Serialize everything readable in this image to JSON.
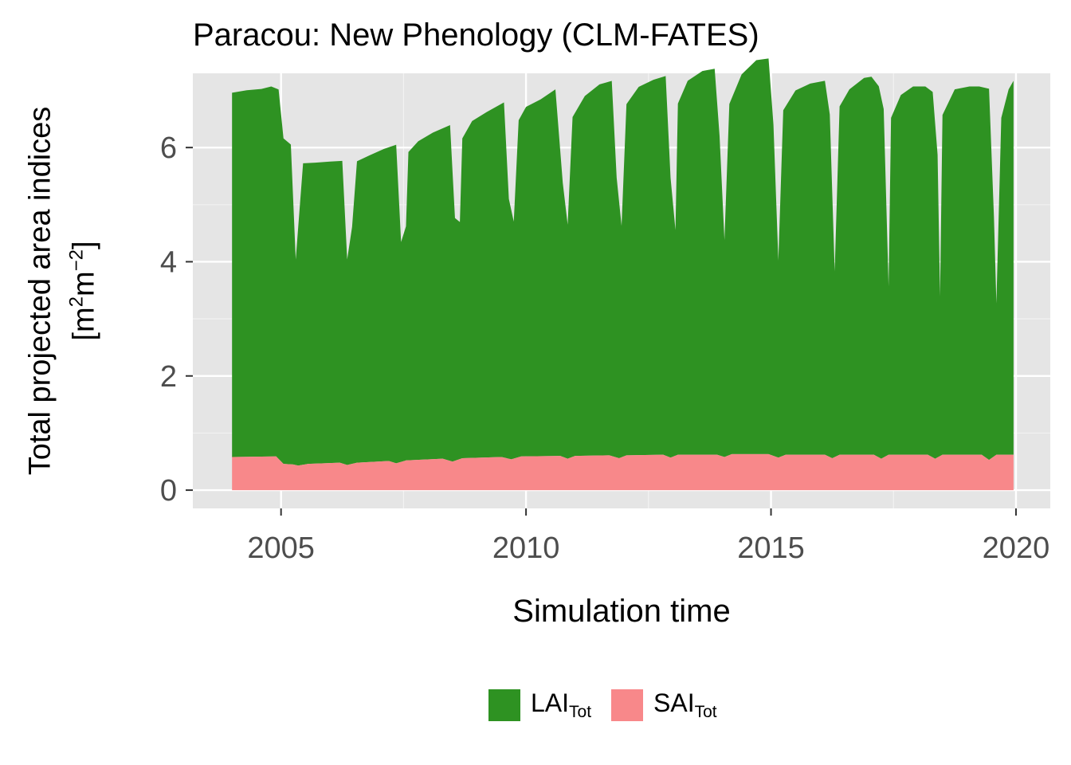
{
  "chart_data": {
    "type": "area",
    "title": "Paracou: New Phenology (CLM-FATES)",
    "xlabel": "Simulation time",
    "ylabel_line1": "Total projected area indices",
    "ylabel_unit_open": "[m",
    "ylabel_unit_sup1": "2",
    "ylabel_unit_mid": "m",
    "ylabel_unit_sup2": "−2",
    "ylabel_unit_close": "]",
    "xlim": [
      2003.2,
      2020.7
    ],
    "ylim": [
      -0.32,
      7.3
    ],
    "xticks": [
      2005,
      2010,
      2015,
      2020
    ],
    "xtick_labels": [
      "2005",
      "2010",
      "2015",
      "2020"
    ],
    "yticks": [
      0,
      2,
      4,
      6
    ],
    "ytick_labels": [
      "0",
      "2",
      "4",
      "6"
    ],
    "grid": true,
    "legend_position": "bottom",
    "stacked": true,
    "series": [
      {
        "name": "SAI",
        "name_sub": "Tot",
        "color": "#F8888A",
        "points": [
          [
            2004.0,
            0.58
          ],
          [
            2004.9,
            0.59
          ],
          [
            2005.05,
            0.46
          ],
          [
            2005.25,
            0.45
          ],
          [
            2005.35,
            0.43
          ],
          [
            2005.55,
            0.46
          ],
          [
            2006.2,
            0.48
          ],
          [
            2006.35,
            0.44
          ],
          [
            2006.55,
            0.48
          ],
          [
            2007.2,
            0.51
          ],
          [
            2007.35,
            0.47
          ],
          [
            2007.55,
            0.52
          ],
          [
            2008.3,
            0.55
          ],
          [
            2008.5,
            0.5
          ],
          [
            2008.7,
            0.56
          ],
          [
            2009.5,
            0.58
          ],
          [
            2009.7,
            0.54
          ],
          [
            2009.9,
            0.59
          ],
          [
            2010.7,
            0.6
          ],
          [
            2010.85,
            0.55
          ],
          [
            2011.0,
            0.6
          ],
          [
            2011.7,
            0.61
          ],
          [
            2011.9,
            0.56
          ],
          [
            2012.05,
            0.61
          ],
          [
            2012.8,
            0.62
          ],
          [
            2012.95,
            0.57
          ],
          [
            2013.1,
            0.62
          ],
          [
            2013.9,
            0.62
          ],
          [
            2014.05,
            0.58
          ],
          [
            2014.2,
            0.63
          ],
          [
            2014.95,
            0.63
          ],
          [
            2015.15,
            0.57
          ],
          [
            2015.3,
            0.62
          ],
          [
            2016.1,
            0.62
          ],
          [
            2016.25,
            0.56
          ],
          [
            2016.4,
            0.62
          ],
          [
            2017.1,
            0.62
          ],
          [
            2017.25,
            0.55
          ],
          [
            2017.4,
            0.62
          ],
          [
            2018.2,
            0.62
          ],
          [
            2018.35,
            0.55
          ],
          [
            2018.5,
            0.62
          ],
          [
            2019.3,
            0.62
          ],
          [
            2019.45,
            0.53
          ],
          [
            2019.6,
            0.62
          ],
          [
            2019.95,
            0.62
          ]
        ]
      },
      {
        "name": "LAI",
        "name_sub": "Tot",
        "color": "#2E9222",
        "points": [
          [
            2004.0,
            6.38
          ],
          [
            2004.3,
            6.42
          ],
          [
            2004.6,
            6.44
          ],
          [
            2004.8,
            6.48
          ],
          [
            2004.95,
            6.47
          ],
          [
            2005.05,
            5.7
          ],
          [
            2005.2,
            5.6
          ],
          [
            2005.3,
            3.6
          ],
          [
            2005.45,
            5.28
          ],
          [
            2005.7,
            5.27
          ],
          [
            2006.0,
            5.28
          ],
          [
            2006.25,
            5.3
          ],
          [
            2006.35,
            3.6
          ],
          [
            2006.45,
            4.15
          ],
          [
            2006.55,
            5.28
          ],
          [
            2006.8,
            5.37
          ],
          [
            2007.1,
            5.47
          ],
          [
            2007.35,
            5.58
          ],
          [
            2007.45,
            3.85
          ],
          [
            2007.55,
            4.1
          ],
          [
            2007.6,
            5.4
          ],
          [
            2007.8,
            5.58
          ],
          [
            2008.1,
            5.72
          ],
          [
            2008.45,
            5.88
          ],
          [
            2008.55,
            4.25
          ],
          [
            2008.65,
            4.15
          ],
          [
            2008.7,
            5.6
          ],
          [
            2008.9,
            5.9
          ],
          [
            2009.2,
            6.05
          ],
          [
            2009.55,
            6.22
          ],
          [
            2009.65,
            4.55
          ],
          [
            2009.75,
            4.15
          ],
          [
            2009.85,
            5.9
          ],
          [
            2010.0,
            6.12
          ],
          [
            2010.3,
            6.25
          ],
          [
            2010.6,
            6.42
          ],
          [
            2010.75,
            4.8
          ],
          [
            2010.85,
            4.1
          ],
          [
            2010.95,
            5.95
          ],
          [
            2011.2,
            6.3
          ],
          [
            2011.5,
            6.5
          ],
          [
            2011.75,
            6.57
          ],
          [
            2011.85,
            4.9
          ],
          [
            2011.95,
            4.05
          ],
          [
            2012.05,
            6.15
          ],
          [
            2012.3,
            6.45
          ],
          [
            2012.6,
            6.57
          ],
          [
            2012.85,
            6.65
          ],
          [
            2012.95,
            4.9
          ],
          [
            2013.05,
            3.95
          ],
          [
            2013.1,
            6.15
          ],
          [
            2013.3,
            6.55
          ],
          [
            2013.6,
            6.72
          ],
          [
            2013.85,
            6.76
          ],
          [
            2013.95,
            5.6
          ],
          [
            2014.05,
            3.8
          ],
          [
            2014.15,
            6.15
          ],
          [
            2014.4,
            6.65
          ],
          [
            2014.7,
            6.9
          ],
          [
            2014.95,
            6.93
          ],
          [
            2015.05,
            5.8
          ],
          [
            2015.15,
            3.45
          ],
          [
            2015.25,
            6.05
          ],
          [
            2015.5,
            6.38
          ],
          [
            2015.8,
            6.5
          ],
          [
            2016.1,
            6.55
          ],
          [
            2016.2,
            6.0
          ],
          [
            2016.3,
            3.25
          ],
          [
            2016.4,
            6.1
          ],
          [
            2016.6,
            6.4
          ],
          [
            2016.9,
            6.6
          ],
          [
            2017.05,
            6.62
          ],
          [
            2017.2,
            6.5
          ],
          [
            2017.3,
            6.1
          ],
          [
            2017.4,
            2.95
          ],
          [
            2017.45,
            5.9
          ],
          [
            2017.65,
            6.3
          ],
          [
            2017.9,
            6.45
          ],
          [
            2018.15,
            6.45
          ],
          [
            2018.3,
            6.4
          ],
          [
            2018.4,
            5.3
          ],
          [
            2018.45,
            2.8
          ],
          [
            2018.5,
            5.95
          ],
          [
            2018.75,
            6.4
          ],
          [
            2019.05,
            6.45
          ],
          [
            2019.25,
            6.45
          ],
          [
            2019.45,
            6.5
          ],
          [
            2019.55,
            4.2
          ],
          [
            2019.6,
            2.65
          ],
          [
            2019.7,
            5.9
          ],
          [
            2019.85,
            6.4
          ],
          [
            2019.95,
            6.55
          ]
        ]
      }
    ]
  }
}
